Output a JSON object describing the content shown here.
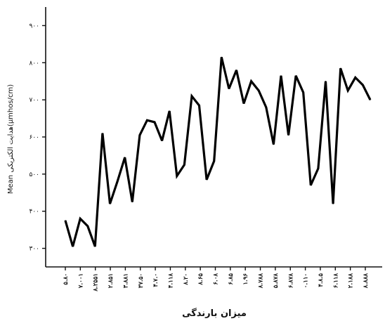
{
  "chart_data": {
    "type": "line",
    "xlabel": "میزان بارندگی",
    "ylabel": "Mean هدایت الکتریکی(μmhos/cm)",
    "ylim": [
      250,
      950
    ],
    "yticks": [
      300,
      400,
      500,
      600,
      700,
      800,
      900
    ],
    "ytick_labels": [
      "۳۰۰",
      "۴۰۰",
      "۵۰۰",
      "۶۰۰",
      "۷۰۰",
      "۸۰۰",
      "۹۰۰"
    ],
    "x_tick_labels": [
      "۵.۸۰",
      "۷.۰۰۱",
      "۸.۲۵۵۱",
      "۲.۸۵۱",
      "۳.۸۸۱",
      "۳۷.۵۰",
      "۴.۷.۰",
      "۴.۱۱۸",
      "۸.۲۰",
      "۸.۶۵",
      "۶.۰۸",
      "۶.۸۵",
      "۱.۹۶",
      "۸.۷۸۸",
      "۵.۸۷۸",
      "۶.۸۷۸",
      "۰.۱۱۰",
      "۴.۸.۵",
      "۶.۱۱۸",
      "۲.۱۸۸",
      "۸.۸۸۸"
    ],
    "grid": false,
    "legend": "none",
    "series": [
      {
        "color": "#000000",
        "values": [
          375,
          305,
          380,
          360,
          305,
          610,
          420,
          480,
          545,
          425,
          605,
          645,
          640,
          590,
          670,
          495,
          525,
          710,
          685,
          485,
          535,
          815,
          730,
          780,
          690,
          750,
          725,
          680,
          580,
          765,
          605,
          765,
          720,
          470,
          515,
          750,
          420,
          785,
          725,
          760,
          740,
          700
        ]
      }
    ]
  }
}
